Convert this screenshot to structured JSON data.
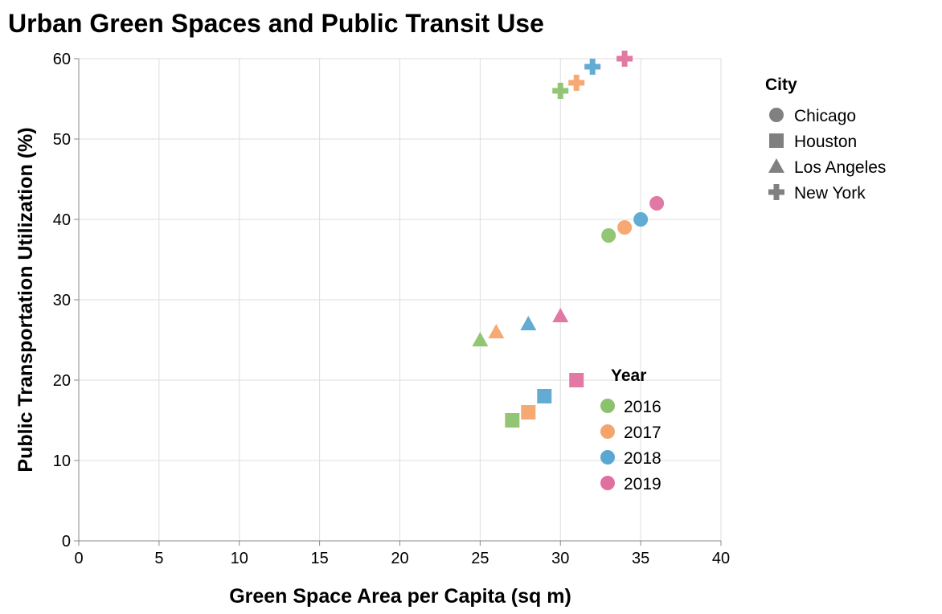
{
  "chart_data": {
    "type": "scatter",
    "title": "Urban Green Spaces and Public Transit Use",
    "xlabel": "Green Space Area per Capita (sq m)",
    "ylabel": "Public Transportation Utilization (%)",
    "xlim": [
      0,
      40
    ],
    "ylim": [
      0,
      60
    ],
    "x_ticks": [
      0,
      5,
      10,
      15,
      20,
      25,
      30,
      35,
      40
    ],
    "y_ticks": [
      0,
      10,
      20,
      30,
      40,
      50,
      60
    ],
    "grid": true,
    "shape_legend": {
      "title": "City",
      "placement": "top-right, outside plot",
      "entries": [
        {
          "label": "Chicago",
          "shape": "circle"
        },
        {
          "label": "Houston",
          "shape": "square"
        },
        {
          "label": "Los Angeles",
          "shape": "triangle"
        },
        {
          "label": "New York",
          "shape": "cross"
        }
      ]
    },
    "color_legend": {
      "title": "Year",
      "placement": "bottom-right, inside plot",
      "entries": [
        {
          "label": "2016",
          "color": "#8cc26d"
        },
        {
          "label": "2017",
          "color": "#f5a46b"
        },
        {
          "label": "2018",
          "color": "#5aa8d1"
        },
        {
          "label": "2019",
          "color": "#e0719f"
        }
      ]
    },
    "points": [
      {
        "city": "Chicago",
        "year": "2016",
        "x": 33,
        "y": 38
      },
      {
        "city": "Chicago",
        "year": "2017",
        "x": 34,
        "y": 39
      },
      {
        "city": "Chicago",
        "year": "2018",
        "x": 35,
        "y": 40
      },
      {
        "city": "Chicago",
        "year": "2019",
        "x": 36,
        "y": 42
      },
      {
        "city": "Houston",
        "year": "2016",
        "x": 27,
        "y": 15
      },
      {
        "city": "Houston",
        "year": "2017",
        "x": 28,
        "y": 16
      },
      {
        "city": "Houston",
        "year": "2018",
        "x": 29,
        "y": 18
      },
      {
        "city": "Houston",
        "year": "2019",
        "x": 31,
        "y": 20
      },
      {
        "city": "Los Angeles",
        "year": "2016",
        "x": 25,
        "y": 25
      },
      {
        "city": "Los Angeles",
        "year": "2017",
        "x": 26,
        "y": 26
      },
      {
        "city": "Los Angeles",
        "year": "2018",
        "x": 28,
        "y": 27
      },
      {
        "city": "Los Angeles",
        "year": "2019",
        "x": 30,
        "y": 28
      },
      {
        "city": "New York",
        "year": "2016",
        "x": 30,
        "y": 56
      },
      {
        "city": "New York",
        "year": "2017",
        "x": 31,
        "y": 57
      },
      {
        "city": "New York",
        "year": "2018",
        "x": 32,
        "y": 59
      },
      {
        "city": "New York",
        "year": "2019",
        "x": 34,
        "y": 60
      }
    ]
  }
}
